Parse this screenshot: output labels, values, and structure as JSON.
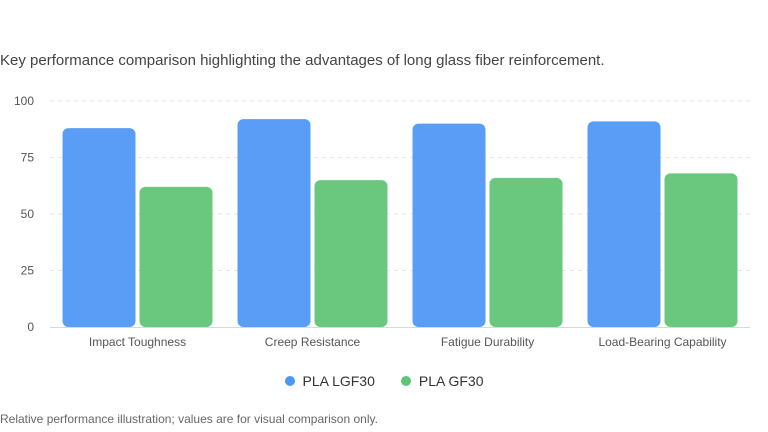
{
  "subtitle": "Key performance comparison highlighting the advantages of long glass fiber reinforcement.",
  "footnote": "Relative performance illustration; values are for visual comparison only.",
  "colors": {
    "series1": "#4e96f6",
    "series2": "#5fc474",
    "grid": "#e6e6e6",
    "axis": "#d9d9d9"
  },
  "chart_data": {
    "type": "bar",
    "categories": [
      "Impact Toughness",
      "Creep Resistance",
      "Fatigue Durability",
      "Load-Bearing Capability"
    ],
    "series": [
      {
        "name": "PLA LGF30",
        "values": [
          88,
          92,
          90,
          91
        ]
      },
      {
        "name": "PLA GF30",
        "values": [
          62,
          65,
          66,
          68
        ]
      }
    ],
    "yticks": [
      0,
      25,
      50,
      75,
      100
    ],
    "ylim": [
      0,
      100
    ],
    "grid": true,
    "legend_position": "bottom-center"
  }
}
